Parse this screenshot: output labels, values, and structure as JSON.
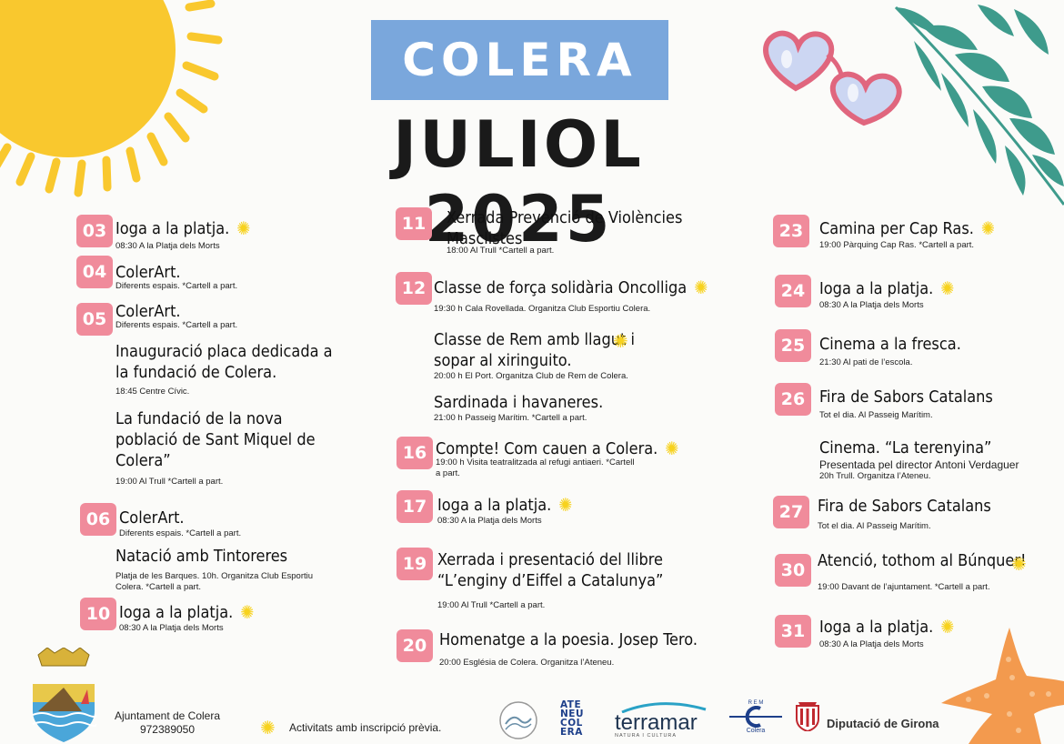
{
  "town": "COLERA",
  "month": "JULIOL 2025",
  "colors": {
    "banner": "#7aa7dc",
    "badge": "#f08b9b",
    "star": "#f7d21e",
    "sun": "#f9c82e",
    "leaf": "#3e9b8c"
  },
  "events": [
    {
      "day": "03",
      "title": "Ioga a la platja.",
      "detail": "08:30 A la Platja dels Morts",
      "star": true
    },
    {
      "day": "04",
      "title": "ColerArt.",
      "detail": "Diferents espais.   *Cartell a part."
    },
    {
      "day": "05",
      "title": "ColerArt.",
      "detail": "Diferents espais.   *Cartell a part."
    },
    {
      "title": "Inauguració placa dedicada a la fundació de Colera.",
      "detail": "18:45 Centre Cívic."
    },
    {
      "title": "La fundació de la nova població de Sant Miquel de Colera”",
      "detail": "19:00 Al Trull  *Cartell a part."
    },
    {
      "day": "06",
      "title": "ColerArt.",
      "detail": "Diferents espais.   *Cartell a part."
    },
    {
      "title": "Natació amb Tintoreres",
      "detail": "Platja de les Barques. 10h. Organitza Club Esportiu Colera.      *Cartell a part."
    },
    {
      "day": "10",
      "title": "Ioga a la platja.",
      "detail": "08:30 A la Platja dels Morts",
      "star": true
    },
    {
      "day": "11",
      "title": "Xerrada Prevenció de Violències Masclistes",
      "detail": "18:00   Al Trull   *Cartell a part."
    },
    {
      "day": "12",
      "title": "Classe de força solidària Oncolliga",
      "detail": "19:30 h   Cala Rovellada. Organitza Club Esportiu Colera.",
      "star": true
    },
    {
      "title": "Classe de Rem amb llagut i sopar al xiringuito.",
      "detail": "20:00 h El Port. Organitza Club de Rem de Colera.",
      "star": true
    },
    {
      "title": "Sardinada i havaneres.",
      "detail": "21:00 h Passeig Marítim.   *Cartell a part."
    },
    {
      "day": "16",
      "title": "Compte! Com cauen a Colera.",
      "detail": "19:00 h Visita teatralitzada al refugi antiaeri.   *Cartell a part.",
      "star": true
    },
    {
      "day": "17",
      "title": "Ioga a la platja.",
      "detail": "08:30 A la Platja dels Morts",
      "star": true
    },
    {
      "day": "19",
      "title": "Xerrada i presentació del llibre “L’enginy d’Eiffel a Catalunya”",
      "detail": "19:00 Al Trull  *Cartell a part."
    },
    {
      "day": "20",
      "title": "Homenatge a la poesia. Josep Tero.",
      "detail": "20:00 Església de Colera. Organitza l’Ateneu."
    },
    {
      "day": "23",
      "title": "Camina per Cap Ras.",
      "detail": "19:00 Pàrquing Cap Ras.    *Cartell a part.",
      "star": true
    },
    {
      "day": "24",
      "title": "Ioga a la platja.",
      "detail": "08:30 A la Platja dels Morts",
      "star": true
    },
    {
      "day": "25",
      "title": "Cinema a la fresca.",
      "detail": "21:30 Al pati de l’escola."
    },
    {
      "day": "26",
      "title": "Fira de Sabors Catalans",
      "detail": "Tot el dia. Al Passeig Marítim."
    },
    {
      "title": "Cinema. “La terenyina”",
      "subtitle": "Presentada pel director Antoni Verdaguer",
      "detail": "20h Trull.  Organitza l’Ateneu."
    },
    {
      "day": "27",
      "title": "Fira de Sabors Catalans",
      "detail": "Tot el dia. Al Passeig Marítim."
    },
    {
      "day": "30",
      "title": "Atenció, tothom al Búnquer!",
      "detail": "19:00   Davant de l’ajuntament.    *Cartell a part.",
      "star": true
    },
    {
      "day": "31",
      "title": "Ioga a la platja.",
      "detail": "08:30 A la Platja dels Morts",
      "star": true
    }
  ],
  "footer": {
    "council": "Ajuntament de Colera",
    "phone": "972389050",
    "legend": "Activitats amb inscripció prèvia.",
    "logos": {
      "ateneu": [
        "ATE",
        "NEU",
        "COL",
        "ERA"
      ],
      "terramar": "terramar",
      "terramar_sub": "NATURA I CULTURA",
      "rem_top": "R E M",
      "rem_bottom": "Colera",
      "diputacio": "Diputació de Girona"
    }
  }
}
